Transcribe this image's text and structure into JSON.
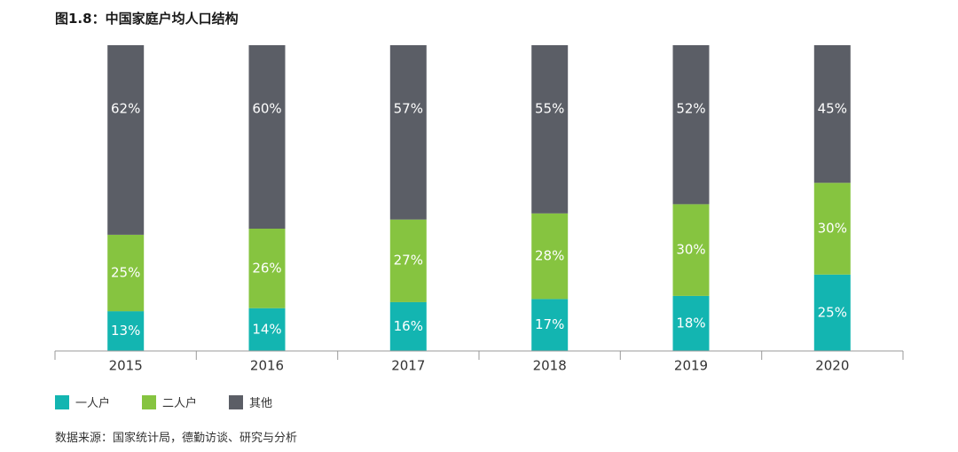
{
  "title": "图1.8：中国家庭户均人口结构",
  "source": "数据来源：国家统计局，德勤访谈、研究与分析",
  "chart_data": {
    "type": "bar",
    "stacked": true,
    "categories": [
      "2015",
      "2016",
      "2017",
      "2018",
      "2019",
      "2020"
    ],
    "series": [
      {
        "name": "一人户",
        "color": "#13b5b1",
        "values": [
          13,
          14,
          16,
          17,
          18,
          25
        ]
      },
      {
        "name": "二人户",
        "color": "#86c440",
        "values": [
          25,
          26,
          27,
          28,
          30,
          30
        ]
      },
      {
        "name": "其他",
        "color": "#5b5e66",
        "values": [
          62,
          60,
          57,
          55,
          52,
          45
        ]
      }
    ],
    "value_suffix": "%",
    "ylim": [
      0,
      100
    ],
    "legend_position": "bottom-left",
    "grid": false
  }
}
